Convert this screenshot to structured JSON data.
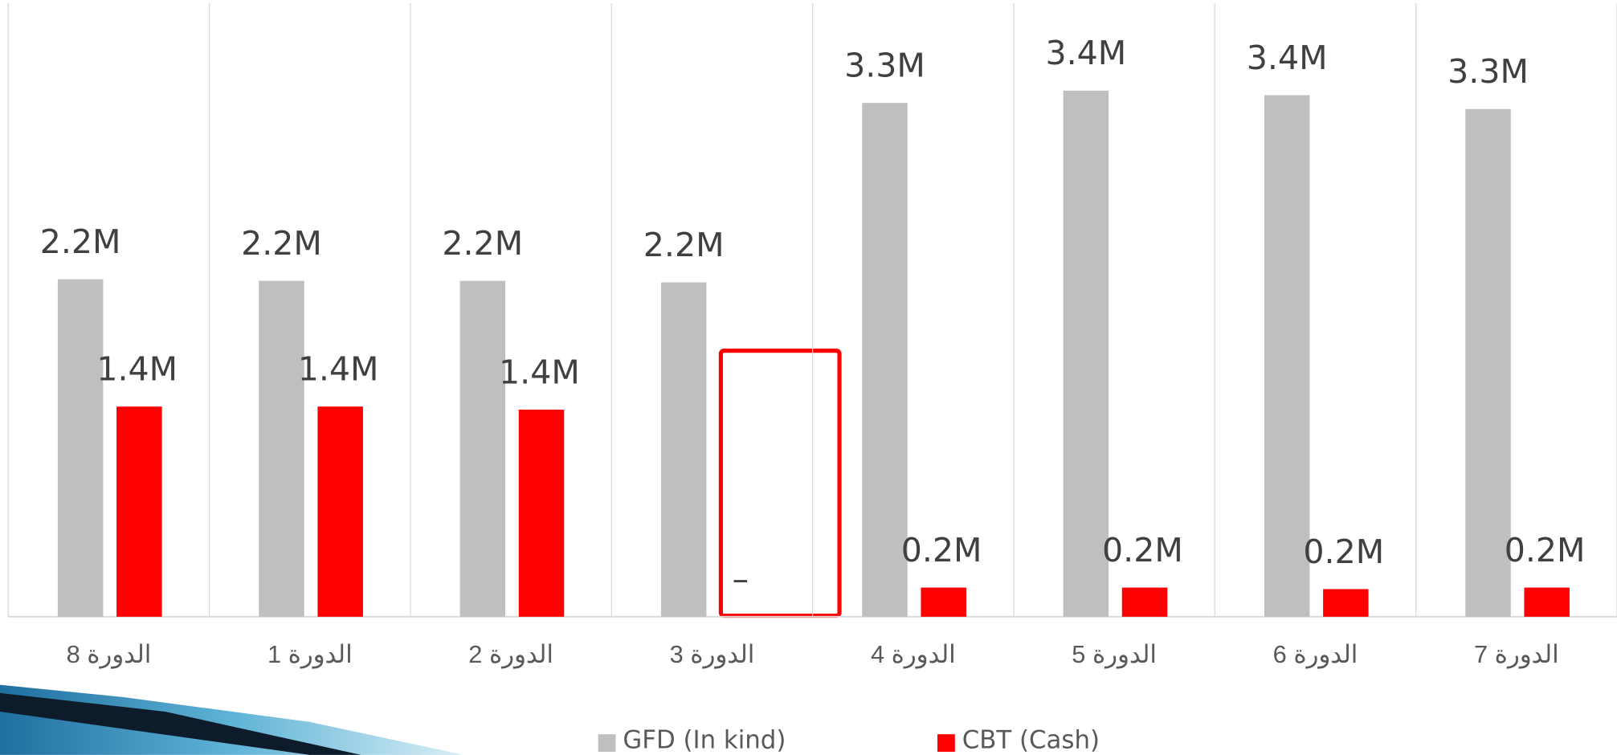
{
  "chart_data": {
    "type": "bar",
    "categories": [
      "الدورة 8",
      "الدورة 1",
      "الدورة 2",
      "الدورة 3",
      "الدورة 4",
      "الدورة 5",
      "الدورة 6",
      "الدورة 7"
    ],
    "series": [
      {
        "name": "GFD (In kind)",
        "color": "#bfbfbf",
        "values": [
          2.2,
          2.19,
          2.19,
          2.18,
          3.35,
          3.43,
          3.4,
          3.31
        ],
        "value_labels": [
          "2.2M",
          "2.2M",
          "2.2M",
          "2.2M",
          "3.3M",
          "3.4M",
          "3.4M",
          "3.3M"
        ]
      },
      {
        "name": "CBT (Cash)",
        "color": "#ff0000",
        "values": [
          1.37,
          1.37,
          1.35,
          null,
          0.19,
          0.19,
          0.18,
          0.19
        ],
        "value_labels": [
          "1.4M",
          "1.4M",
          "1.4M",
          "–",
          "0.2M",
          "0.2M",
          "0.2M",
          "0.2M"
        ]
      }
    ],
    "ylim": [
      0,
      4
    ]
  }
}
